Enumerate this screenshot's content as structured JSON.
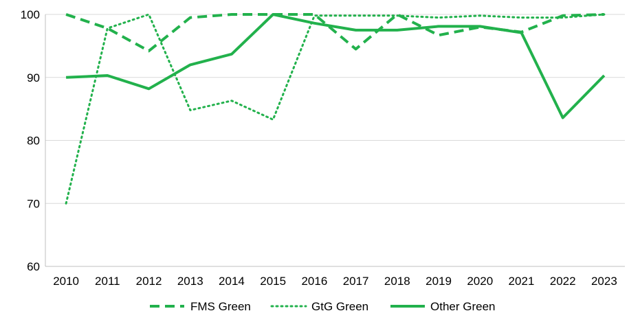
{
  "chart_data": {
    "type": "line",
    "title": "",
    "xlabel": "",
    "ylabel": "",
    "x": [
      "2010",
      "2011",
      "2012",
      "2013",
      "2014",
      "2015",
      "2016",
      "2017",
      "2018",
      "2019",
      "2020",
      "2021",
      "2022",
      "2023"
    ],
    "ylim": [
      60,
      100
    ],
    "yticks": [
      "60",
      "70",
      "80",
      "90",
      "100"
    ],
    "grid": true,
    "legend_position": "bottom",
    "series": [
      {
        "name": "FMS Green",
        "style": "dashed",
        "color": "#22b14c",
        "values": [
          100,
          97.8,
          94.2,
          99.5,
          100,
          100,
          100,
          94.5,
          100,
          96.7,
          98,
          97.2,
          99.8,
          100
        ]
      },
      {
        "name": "GtG Green",
        "style": "dotted",
        "color": "#22b14c",
        "values": [
          70,
          97.8,
          100,
          84.8,
          86.3,
          83.3,
          99.8,
          99.8,
          99.8,
          99.5,
          99.8,
          99.5,
          99.5,
          100
        ]
      },
      {
        "name": "Other Green",
        "style": "solid",
        "color": "#22b14c",
        "values": [
          90,
          90.3,
          88.2,
          92,
          93.7,
          100,
          98.6,
          97.5,
          97.5,
          98.1,
          98.1,
          97.1,
          83.6,
          90.3
        ]
      }
    ]
  }
}
